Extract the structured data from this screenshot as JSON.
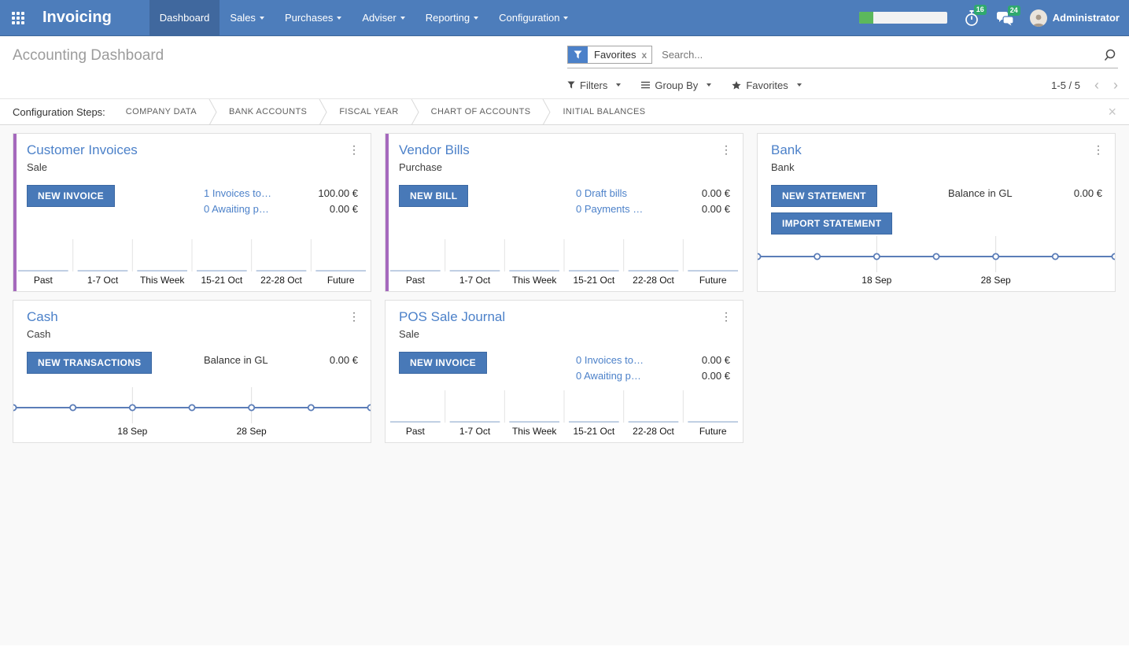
{
  "colors": {
    "navbar_bg": "#4d7dbb",
    "navbar_active": "#40689e",
    "primary": "#4c81c9",
    "button": "#4879b8",
    "accent": "#a569bd",
    "badge": "#2fa96e",
    "progress": "#5cb85c",
    "chart_line": "#5b7db8",
    "chart_bar": "#b8c9e0"
  },
  "topbar": {
    "brand": "Invoicing",
    "menus": [
      {
        "label": "Dashboard",
        "active": true,
        "caret": false
      },
      {
        "label": "Sales",
        "active": false,
        "caret": true
      },
      {
        "label": "Purchases",
        "active": false,
        "caret": true
      },
      {
        "label": "Adviser",
        "active": false,
        "caret": true
      },
      {
        "label": "Reporting",
        "active": false,
        "caret": true
      },
      {
        "label": "Configuration",
        "active": false,
        "caret": true
      }
    ],
    "systray": {
      "progress": {
        "percent": 16
      },
      "activities": {
        "count": "16"
      },
      "messages": {
        "count": "24"
      },
      "user": "Administrator"
    }
  },
  "control_panel": {
    "title": "Accounting Dashboard",
    "search": {
      "facet": "Favorites",
      "placeholder": "Search...",
      "remove_label": "x"
    },
    "buttons": {
      "filters": "Filters",
      "group_by": "Group By",
      "favorites": "Favorites"
    },
    "pager": {
      "value": "1-5 / 5",
      "prev": "‹",
      "next": "›"
    }
  },
  "config_steps": {
    "label": "Configuration Steps:",
    "steps": [
      "COMPANY DATA",
      "BANK ACCOUNTS",
      "FISCAL YEAR",
      "CHART OF ACCOUNTS",
      "INITIAL BALANCES"
    ],
    "close": "×"
  },
  "cards": [
    {
      "id": "customer-invoices",
      "title": "Customer Invoices",
      "subtitle": "Sale",
      "accent": true,
      "buttons": [
        {
          "label": "NEW INVOICE"
        }
      ],
      "info": [
        {
          "text": "1 Invoices to…",
          "link": true,
          "amount": "100.00 €"
        },
        {
          "text": "0 Awaiting p…",
          "link": true,
          "amount": "0.00 €"
        }
      ],
      "chart": {
        "type": "bar",
        "categories": [
          "Past",
          "1-7 Oct",
          "This Week",
          "15-21 Oct",
          "22-28 Oct",
          "Future"
        ],
        "values": [
          0,
          0,
          0,
          0,
          0,
          0
        ]
      }
    },
    {
      "id": "vendor-bills",
      "title": "Vendor Bills",
      "subtitle": "Purchase",
      "accent": true,
      "buttons": [
        {
          "label": "NEW BILL"
        }
      ],
      "info": [
        {
          "text": "0 Draft bills",
          "link": true,
          "amount": "0.00 €"
        },
        {
          "text": "0 Payments …",
          "link": true,
          "amount": "0.00 €"
        }
      ],
      "chart": {
        "type": "bar",
        "categories": [
          "Past",
          "1-7 Oct",
          "This Week",
          "15-21 Oct",
          "22-28 Oct",
          "Future"
        ],
        "values": [
          0,
          0,
          0,
          0,
          0,
          0
        ]
      }
    },
    {
      "id": "bank",
      "title": "Bank",
      "subtitle": "Bank",
      "accent": false,
      "buttons": [
        {
          "label": "NEW STATEMENT"
        },
        {
          "label": "IMPORT STATEMENT"
        }
      ],
      "info": [
        {
          "text": "Balance in GL",
          "link": false,
          "amount": "0.00 €"
        }
      ],
      "chart": {
        "type": "line",
        "values": [
          0,
          0,
          0,
          0,
          0,
          0,
          0
        ],
        "x_labels": [
          {
            "label": "18 Sep",
            "point": 2
          },
          {
            "label": "28 Sep",
            "point": 4
          }
        ]
      }
    },
    {
      "id": "cash",
      "title": "Cash",
      "subtitle": "Cash",
      "accent": false,
      "buttons": [
        {
          "label": "NEW TRANSACTIONS"
        }
      ],
      "info": [
        {
          "text": "Balance in GL",
          "link": false,
          "amount": "0.00 €"
        }
      ],
      "chart": {
        "type": "line",
        "values": [
          0,
          0,
          0,
          0,
          0,
          0,
          0
        ],
        "x_labels": [
          {
            "label": "18 Sep",
            "point": 2
          },
          {
            "label": "28 Sep",
            "point": 4
          }
        ]
      }
    },
    {
      "id": "pos-sale-journal",
      "title": "POS Sale Journal",
      "subtitle": "Sale",
      "accent": false,
      "buttons": [
        {
          "label": "NEW INVOICE"
        }
      ],
      "info": [
        {
          "text": "0 Invoices to…",
          "link": true,
          "amount": "0.00 €"
        },
        {
          "text": "0 Awaiting p…",
          "link": true,
          "amount": "0.00 €"
        }
      ],
      "chart": {
        "type": "bar",
        "categories": [
          "Past",
          "1-7 Oct",
          "This Week",
          "15-21 Oct",
          "22-28 Oct",
          "Future"
        ],
        "values": [
          0,
          0,
          0,
          0,
          0,
          0
        ]
      }
    }
  ]
}
